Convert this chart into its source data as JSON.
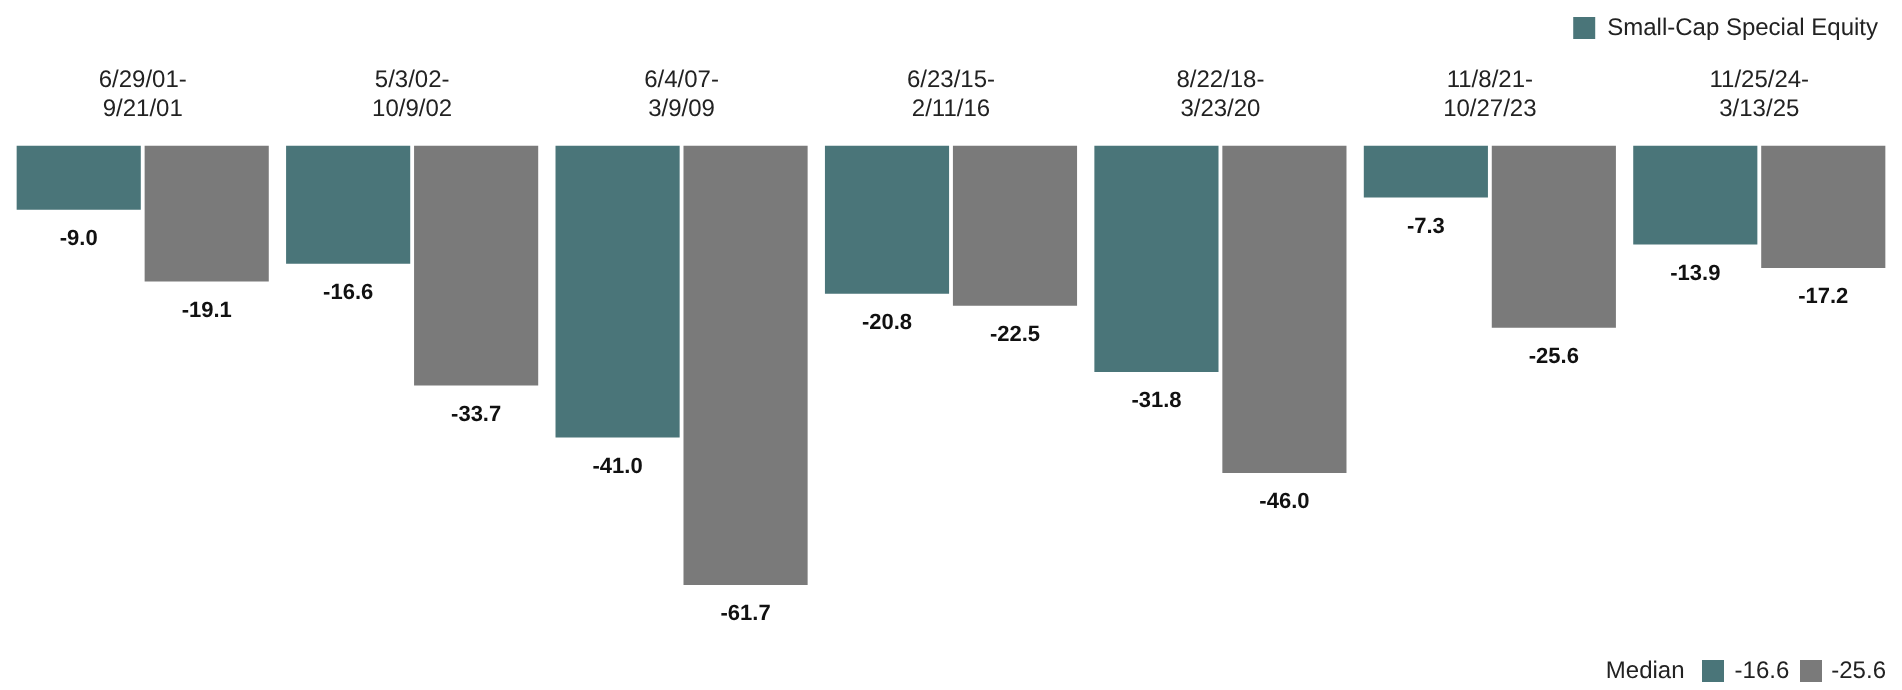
{
  "chart_data": {
    "type": "bar",
    "categories": [
      "6/29/01- 9/21/01",
      "5/3/02- 10/9/02",
      "6/4/07- 3/9/09",
      "6/23/15- 2/11/16",
      "8/22/18- 3/23/20",
      "11/8/21- 10/27/23",
      "11/25/24- 3/13/25"
    ],
    "series": [
      {
        "name": "Small-Cap Special Equity",
        "color": "#4a7579",
        "values": [
          -9.0,
          -16.6,
          -41.0,
          -20.8,
          -31.8,
          -7.3,
          -13.9
        ],
        "value_labels": [
          "-9.0",
          "-16.6",
          "-41.0",
          "-20.8",
          "-31.8",
          "-7.3",
          "-13.9"
        ]
      },
      {
        "color": "#7a7a7a",
        "values": [
          -19.1,
          -33.7,
          -61.7,
          -22.5,
          -46.0,
          -25.6,
          -17.2
        ],
        "value_labels": [
          "-19.1",
          "-33.7",
          "-61.7",
          "-22.5",
          "-46.0",
          "-25.6",
          "-17.2"
        ]
      }
    ],
    "tick_labels": "x",
    "grid": false,
    "legend": "top right",
    "annotations": [
      "Median",
      "-16.6",
      "-25.6"
    ]
  }
}
